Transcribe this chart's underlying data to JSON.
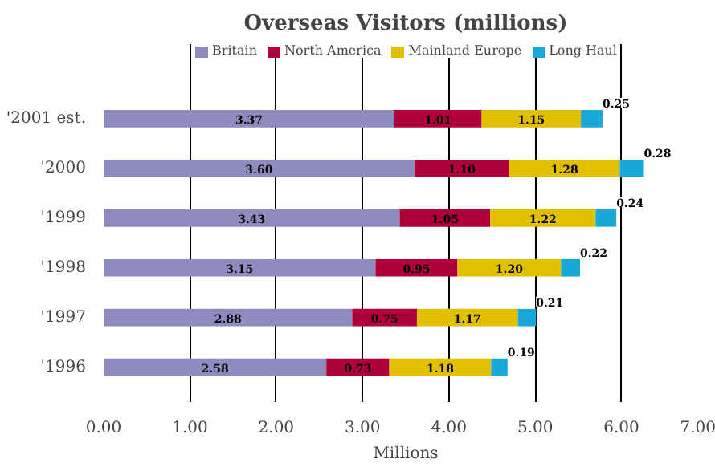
{
  "chart_data": {
    "type": "bar",
    "orientation": "horizontal",
    "stacked": true,
    "title": "Overseas Visitors (millions)",
    "xlabel": "Millions",
    "categories": [
      "'2001 est.",
      "'2000",
      "'1999",
      "'1998",
      "'1997",
      "'1996"
    ],
    "series": [
      {
        "name": "Britain",
        "color": "#8e8cbf",
        "values": [
          3.37,
          3.6,
          3.43,
          3.15,
          2.88,
          2.58
        ],
        "value_labels": [
          "3.37",
          "3.60",
          "3.43",
          "3.15",
          "2.88",
          "2.58"
        ]
      },
      {
        "name": "North America",
        "color": "#b0003a",
        "values": [
          1.01,
          1.1,
          1.05,
          0.95,
          0.75,
          0.73
        ],
        "value_labels": [
          "1.01",
          "1.10",
          "1.05",
          "0.95",
          "0.75",
          "0.73"
        ]
      },
      {
        "name": "Mainland Europe",
        "color": "#e0c000",
        "values": [
          1.15,
          1.28,
          1.22,
          1.2,
          1.17,
          1.18
        ],
        "value_labels": [
          "1.15",
          "1.28",
          "1.22",
          "1.20",
          "1.17",
          "1.18"
        ]
      },
      {
        "name": "Long Haul",
        "color": "#1aa8d8",
        "values": [
          0.25,
          0.28,
          0.24,
          0.22,
          0.21,
          0.19
        ],
        "value_labels": [
          "0.25",
          "0.28",
          "0.24",
          "0.22",
          "0.21",
          "0.19"
        ]
      }
    ],
    "xlim": [
      0,
      7
    ],
    "xticks": [
      {
        "value": 0,
        "label": "0.00"
      },
      {
        "value": 1,
        "label": "1.00"
      },
      {
        "value": 2,
        "label": "2.00"
      },
      {
        "value": 3,
        "label": "3.00"
      },
      {
        "value": 4,
        "label": "4.00"
      },
      {
        "value": 5,
        "label": "5.00"
      },
      {
        "value": 6,
        "label": "6.00"
      },
      {
        "value": 7,
        "label": "7.00"
      }
    ],
    "grid": "x",
    "legend": "top"
  }
}
